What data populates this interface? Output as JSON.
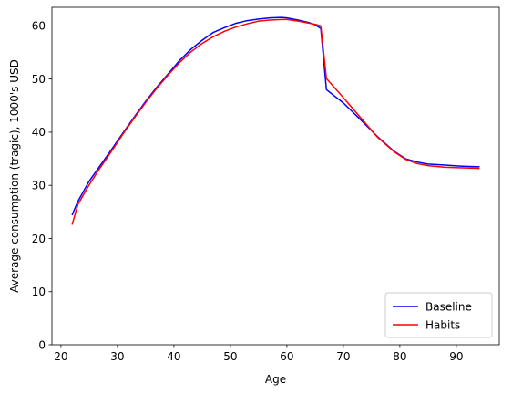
{
  "chart_data": {
    "type": "line",
    "title": "",
    "xlabel": "Age",
    "ylabel": "Average consumption (tragic), 1000's USD",
    "xlim": [
      18.4,
      97.6
    ],
    "ylim": [
      0,
      63.5
    ],
    "xticks": [
      20,
      30,
      40,
      50,
      60,
      70,
      80,
      90
    ],
    "yticks": [
      0,
      10,
      20,
      30,
      40,
      50,
      60
    ],
    "grid": false,
    "legend_position": "lower-right",
    "series": [
      {
        "name": "Baseline",
        "color": "#0000ff",
        "x": [
          22,
          23,
          25,
          27,
          29,
          31,
          33,
          35,
          37,
          39,
          41,
          43,
          45,
          47,
          49,
          51,
          53,
          55,
          57,
          59,
          60,
          62,
          64,
          65,
          66,
          67,
          70,
          73,
          76,
          79,
          81,
          83,
          85,
          88,
          91,
          94
        ],
        "y": [
          24.5,
          27.0,
          30.8,
          33.8,
          36.8,
          39.9,
          42.9,
          45.8,
          48.5,
          51.0,
          53.5,
          55.6,
          57.3,
          58.8,
          59.7,
          60.5,
          61.0,
          61.3,
          61.5,
          61.6,
          61.5,
          61.1,
          60.6,
          60.2,
          59.5,
          48.0,
          45.5,
          42.4,
          39.2,
          36.4,
          35.0,
          34.4,
          34.0,
          33.8,
          33.6,
          33.5
        ]
      },
      {
        "name": "Habits",
        "color": "#ff0000",
        "x": [
          22,
          23,
          25,
          27,
          29,
          31,
          33,
          35,
          37,
          39,
          41,
          43,
          45,
          47,
          49,
          51,
          53,
          55,
          57,
          59,
          60,
          62,
          64,
          65,
          66,
          67,
          70,
          73,
          76,
          79,
          81,
          83,
          85,
          88,
          91,
          94
        ],
        "y": [
          22.7,
          26.4,
          30.1,
          33.4,
          36.5,
          39.7,
          42.7,
          45.6,
          48.3,
          50.8,
          53.1,
          55.1,
          56.7,
          58.0,
          59.0,
          59.8,
          60.4,
          60.9,
          61.1,
          61.2,
          61.2,
          60.9,
          60.5,
          60.3,
          60.0,
          50.1,
          46.5,
          42.8,
          39.1,
          36.3,
          34.9,
          34.1,
          33.7,
          33.4,
          33.3,
          33.2
        ]
      }
    ]
  }
}
